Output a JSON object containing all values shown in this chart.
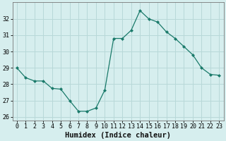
{
  "x": [
    0,
    1,
    2,
    3,
    4,
    5,
    6,
    7,
    8,
    9,
    10,
    11,
    12,
    13,
    14,
    15,
    16,
    17,
    18,
    19,
    20,
    21,
    22,
    23
  ],
  "y": [
    29.0,
    28.4,
    28.2,
    28.2,
    27.75,
    27.7,
    27.0,
    26.35,
    26.35,
    26.55,
    27.65,
    30.8,
    30.8,
    31.3,
    32.5,
    32.0,
    31.8,
    31.2,
    30.8,
    30.3,
    29.8,
    29.0,
    28.6,
    28.55
  ],
  "xlim": [
    -0.5,
    23.5
  ],
  "ylim": [
    25.8,
    33.0
  ],
  "yticks": [
    26,
    27,
    28,
    29,
    30,
    31,
    32
  ],
  "xticks": [
    0,
    1,
    2,
    3,
    4,
    5,
    6,
    7,
    8,
    9,
    10,
    11,
    12,
    13,
    14,
    15,
    16,
    17,
    18,
    19,
    20,
    21,
    22,
    23
  ],
  "xlabel": "Humidex (Indice chaleur)",
  "line_color": "#1a7a6a",
  "marker_color": "#1a7a6a",
  "bg_color": "#d6eeee",
  "grid_color": "#b8d8d8",
  "tick_label_fontsize": 6.0,
  "xlabel_fontsize": 7.5
}
